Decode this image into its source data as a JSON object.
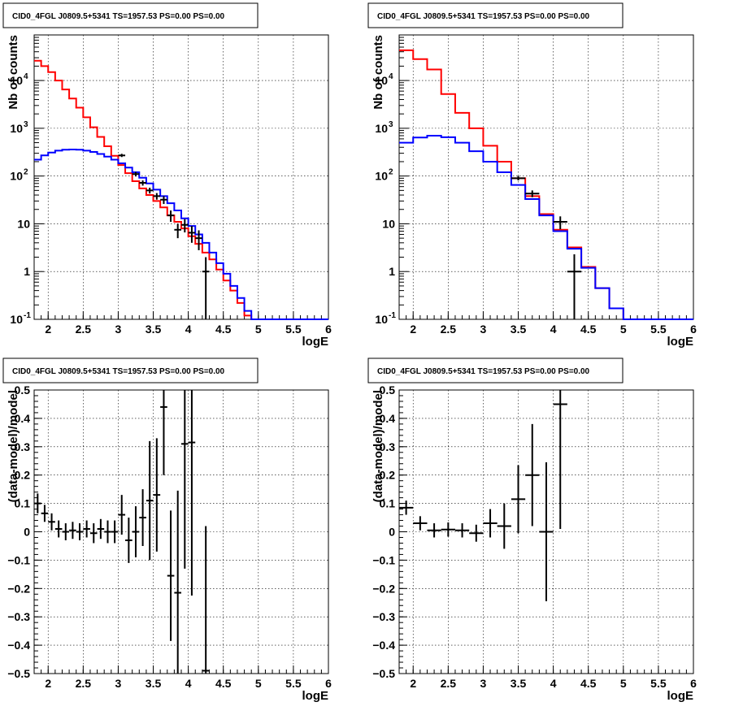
{
  "chart_data": [
    {
      "panel": "top-left",
      "type": "histogram",
      "title": "CID0_4FGL J0809.5+5341 TS=1957.53 PS=0.00 PS=0.00",
      "xlabel": "logE",
      "ylabel": "Nb of counts",
      "xlim": [
        1.8,
        6.0
      ],
      "ylim": [
        0.1,
        90000
      ],
      "log_y": true,
      "grid": true,
      "x_ticks": [
        "2",
        "2.5",
        "3",
        "3.5",
        "4",
        "4.5",
        "5",
        "5.5",
        "6"
      ],
      "y_ticks": [
        "10^-1",
        "1",
        "10",
        "10^2",
        "10^3",
        "10^4"
      ],
      "bin_edges": [
        1.8,
        1.9,
        2.0,
        2.1,
        2.2,
        2.3,
        2.4,
        2.5,
        2.6,
        2.7,
        2.8,
        2.9,
        3.0,
        3.1,
        3.2,
        3.3,
        3.4,
        3.5,
        3.6,
        3.7,
        3.8,
        3.9,
        4.0,
        4.1,
        4.2,
        4.3,
        4.4,
        4.5,
        4.6,
        4.7,
        4.8,
        4.9,
        5.0,
        5.1,
        5.2,
        5.3,
        5.4,
        5.5,
        5.6,
        5.7,
        5.8,
        5.9,
        6.0
      ],
      "series": [
        {
          "color": "#ff0000",
          "values": [
            26000,
            20000,
            15000,
            10000,
            6500,
            4200,
            2700,
            1700,
            1050,
            660,
            420,
            265,
            170,
            115,
            78,
            55,
            40,
            30,
            22,
            15,
            11,
            8,
            5.5,
            3.8,
            2.5,
            1.8,
            1.1,
            0.65,
            0.4,
            0.22,
            0.12,
            0.1,
            0.1,
            0.1,
            0.1,
            0.1,
            0.1,
            0.1,
            0.1,
            0.1,
            0.1,
            0.1
          ]
        },
        {
          "color": "#0000ff",
          "values": [
            220,
            270,
            310,
            340,
            355,
            360,
            355,
            340,
            320,
            290,
            255,
            220,
            185,
            150,
            120,
            92,
            70,
            52,
            38,
            27,
            19,
            13,
            9,
            6,
            4,
            2.5,
            1.5,
            0.9,
            0.5,
            0.28,
            0.15,
            0.1,
            0.1,
            0.1,
            0.1,
            0.1,
            0.1,
            0.1,
            0.1,
            0.1,
            0.1,
            0.1
          ]
        }
      ],
      "data_points": [
        {
          "x": 3.05,
          "y": 270,
          "ylo": 250,
          "yhi": 292
        },
        {
          "x": 3.25,
          "y": 110,
          "ylo": 98,
          "yhi": 122
        },
        {
          "x": 3.35,
          "y": 72,
          "ylo": 63,
          "yhi": 81
        },
        {
          "x": 3.45,
          "y": 50,
          "ylo": 43,
          "yhi": 57
        },
        {
          "x": 3.55,
          "y": 38,
          "ylo": 32,
          "yhi": 44
        },
        {
          "x": 3.65,
          "y": 32,
          "ylo": 26,
          "yhi": 38
        },
        {
          "x": 3.75,
          "y": 15,
          "ylo": 11,
          "yhi": 19
        },
        {
          "x": 3.85,
          "y": 7.5,
          "ylo": 5,
          "yhi": 10
        },
        {
          "x": 3.95,
          "y": 9.5,
          "ylo": 6.6,
          "yhi": 12.5
        },
        {
          "x": 4.05,
          "y": 6.5,
          "ylo": 4,
          "yhi": 9
        },
        {
          "x": 4.15,
          "y": 5,
          "ylo": 2.8,
          "yhi": 7.3
        },
        {
          "x": 4.25,
          "y": 1,
          "ylo": 0.1,
          "yhi": 2
        }
      ]
    },
    {
      "panel": "top-right",
      "type": "histogram",
      "title": "CID0_4FGL J0809.5+5341 TS=1957.53 PS=0.00 PS=0.00",
      "xlabel": "logE",
      "ylabel": "Nb of counts",
      "xlim": [
        1.8,
        6.0
      ],
      "ylim": [
        0.1,
        90000
      ],
      "log_y": true,
      "grid": true,
      "x_ticks": [
        "2",
        "2.5",
        "3",
        "3.5",
        "4",
        "4.5",
        "5",
        "5.5",
        "6"
      ],
      "y_ticks": [
        "10^-1",
        "1",
        "10",
        "10^2",
        "10^3",
        "10^4"
      ],
      "bin_edges": [
        1.8,
        2.0,
        2.2,
        2.4,
        2.6,
        2.8,
        3.0,
        3.2,
        3.4,
        3.6,
        3.8,
        4.0,
        4.2,
        4.4,
        4.6,
        4.8,
        5.0,
        5.2,
        5.4,
        5.6,
        5.8,
        6.0
      ],
      "series": [
        {
          "color": "#ff0000",
          "values": [
            43000,
            28000,
            17000,
            5200,
            2100,
            1000,
            430,
            200,
            90,
            38,
            16,
            7.5,
            3.2,
            1.25,
            0.45,
            0.17,
            0.1,
            0.1,
            0.1,
            0.1,
            0.1
          ]
        },
        {
          "color": "#0000ff",
          "values": [
            500,
            640,
            700,
            650,
            500,
            330,
            200,
            120,
            65,
            33,
            15,
            7,
            3,
            1.2,
            0.45,
            0.17,
            0.1,
            0.1,
            0.1,
            0.1,
            0.1
          ]
        }
      ],
      "data_points": [
        {
          "x": 3.5,
          "y": 90,
          "ylo": 81,
          "yhi": 100
        },
        {
          "x": 3.7,
          "y": 43,
          "ylo": 36,
          "yhi": 50
        },
        {
          "x": 4.1,
          "y": 11,
          "ylo": 7.7,
          "yhi": 14.3
        },
        {
          "x": 4.3,
          "y": 1,
          "ylo": 0.1,
          "yhi": 2.3
        }
      ]
    },
    {
      "panel": "bottom-left",
      "type": "scatter",
      "title": "CID0_4FGL J0809.5+5341 TS=1957.53 PS=0.00 PS=0.00",
      "xlabel": "logE",
      "ylabel": "(data-model)/model",
      "xlim": [
        1.8,
        6.0
      ],
      "ylim": [
        -0.5,
        0.5
      ],
      "grid": true,
      "x_ticks": [
        "2",
        "2.5",
        "3",
        "3.5",
        "4",
        "4.5",
        "5",
        "5.5",
        "6"
      ],
      "y_ticks": [
        "−0.5",
        "−0.4",
        "−0.3",
        "−0.2",
        "−0.1",
        "0",
        "0.1",
        "0.2",
        "0.3",
        "0.4",
        "0.5"
      ],
      "bin_width": 0.1,
      "points": [
        {
          "x": 1.85,
          "y": 0.1,
          "e": 0.035
        },
        {
          "x": 1.95,
          "y": 0.065,
          "e": 0.03
        },
        {
          "x": 2.05,
          "y": 0.035,
          "e": 0.03
        },
        {
          "x": 2.15,
          "y": 0.01,
          "e": 0.03
        },
        {
          "x": 2.25,
          "y": 0.0,
          "e": 0.03
        },
        {
          "x": 2.35,
          "y": 0.005,
          "e": 0.03
        },
        {
          "x": 2.45,
          "y": 0.0,
          "e": 0.03
        },
        {
          "x": 2.55,
          "y": 0.01,
          "e": 0.03
        },
        {
          "x": 2.65,
          "y": -0.005,
          "e": 0.035
        },
        {
          "x": 2.75,
          "y": 0.01,
          "e": 0.035
        },
        {
          "x": 2.85,
          "y": 0.0,
          "e": 0.04
        },
        {
          "x": 2.95,
          "y": 0.0,
          "e": 0.04
        },
        {
          "x": 3.05,
          "y": 0.06,
          "e": 0.07
        },
        {
          "x": 3.15,
          "y": -0.03,
          "e": 0.08
        },
        {
          "x": 3.25,
          "y": 0.0,
          "e": 0.09
        },
        {
          "x": 3.35,
          "y": 0.05,
          "e": 0.1
        },
        {
          "x": 3.45,
          "y": 0.11,
          "e": 0.21
        },
        {
          "x": 3.55,
          "y": 0.13,
          "e": 0.2
        },
        {
          "x": 3.65,
          "y": 0.44,
          "e": 0.24
        },
        {
          "x": 3.75,
          "y": -0.155,
          "e": 0.23
        },
        {
          "x": 3.85,
          "y": -0.215,
          "e": 0.36
        },
        {
          "x": 3.95,
          "y": 0.31,
          "e": 0.44
        },
        {
          "x": 4.05,
          "y": 0.315,
          "e": 0.54
        },
        {
          "x": 4.25,
          "y": -0.49,
          "e": 0.51
        }
      ]
    },
    {
      "panel": "bottom-right",
      "type": "scatter",
      "title": "CID0_4FGL J0809.5+5341 TS=1957.53 PS=0.00 PS=0.00",
      "xlabel": "logE",
      "ylabel": "(data-model)/model",
      "xlim": [
        1.8,
        6.0
      ],
      "ylim": [
        -0.5,
        0.5
      ],
      "grid": true,
      "x_ticks": [
        "2",
        "2.5",
        "3",
        "3.5",
        "4",
        "4.5",
        "5",
        "5.5",
        "6"
      ],
      "y_ticks": [
        "−0.5",
        "−0.4",
        "−0.3",
        "−0.2",
        "−0.1",
        "0",
        "0.1",
        "0.2",
        "0.3",
        "0.4",
        "0.5"
      ],
      "bin_width": 0.2,
      "points": [
        {
          "x": 1.9,
          "y": 0.085,
          "e": 0.025
        },
        {
          "x": 2.1,
          "y": 0.03,
          "e": 0.025
        },
        {
          "x": 2.3,
          "y": 0.005,
          "e": 0.025
        },
        {
          "x": 2.5,
          "y": 0.008,
          "e": 0.025
        },
        {
          "x": 2.7,
          "y": 0.005,
          "e": 0.025
        },
        {
          "x": 2.9,
          "y": -0.005,
          "e": 0.03
        },
        {
          "x": 3.1,
          "y": 0.03,
          "e": 0.05
        },
        {
          "x": 3.3,
          "y": 0.02,
          "e": 0.08
        },
        {
          "x": 3.5,
          "y": 0.115,
          "e": 0.12
        },
        {
          "x": 3.7,
          "y": 0.2,
          "e": 0.18
        },
        {
          "x": 3.9,
          "y": 0.0,
          "e": 0.245
        },
        {
          "x": 4.1,
          "y": 0.45,
          "e": 0.44
        }
      ]
    }
  ]
}
